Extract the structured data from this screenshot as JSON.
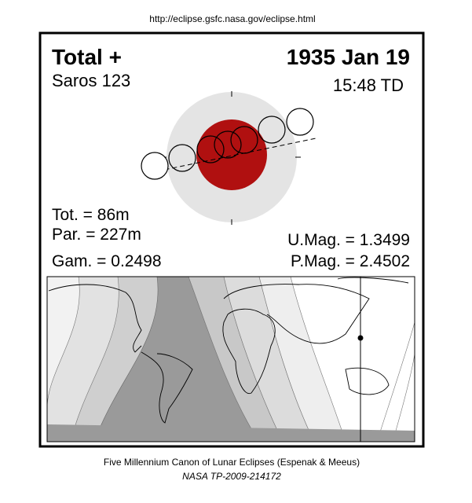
{
  "header": {
    "url": "http://eclipse.gsfc.nasa.gov/eclipse.html"
  },
  "eclipse": {
    "type": "Total  +",
    "saros": "Saros 123",
    "date": "1935 Jan 19",
    "time": "15:48 TD",
    "duration_total": "Tot. =  86m",
    "duration_partial": "Par. = 227m",
    "gamma": "Gam. = 0.2498",
    "umbral_magnitude": "U.Mag. = 1.3499",
    "penumbral_magnitude": "P.Mag. = 2.4502"
  },
  "footer": {
    "line1": "Five Millennium Canon of Lunar Eclipses (Espenak & Meeus)",
    "line2": "NASA TP-2009-214172"
  }
}
